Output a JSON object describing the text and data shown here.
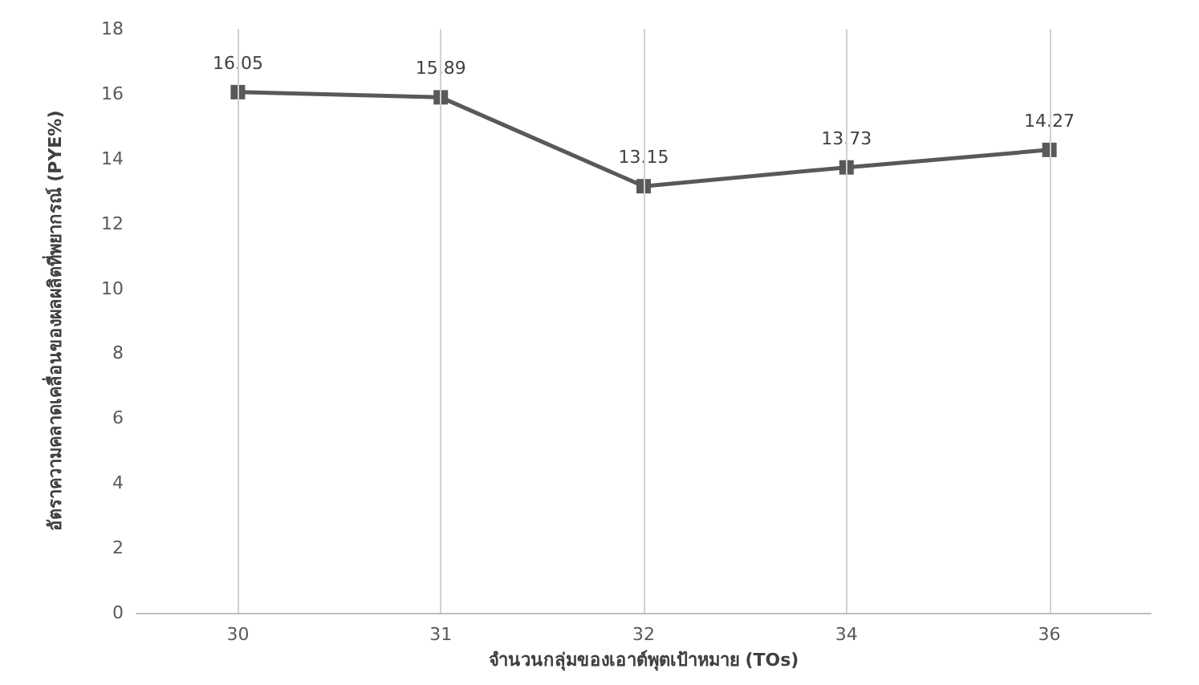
{
  "chart_data": {
    "type": "line",
    "xlabel": "จำนวนกลุ่มของเอาต์พุตเป้าหมาย (TOs)",
    "ylabel": "อัตราความคลาดเคลื่อนของผลผลิตที่พยากรณ์ (PYE%)",
    "categories": [
      "30",
      "31",
      "32",
      "34",
      "36"
    ],
    "series": [
      {
        "color": "#595959",
        "values": [
          16.05,
          15.89,
          13.15,
          13.73,
          14.27
        ]
      }
    ],
    "data_labels": true,
    "marker": "square",
    "line_style": "solid",
    "ylim": [
      0,
      18
    ],
    "yticks": [
      0,
      2,
      4,
      6,
      8,
      10,
      12,
      14,
      16,
      18
    ],
    "grid": "x"
  }
}
